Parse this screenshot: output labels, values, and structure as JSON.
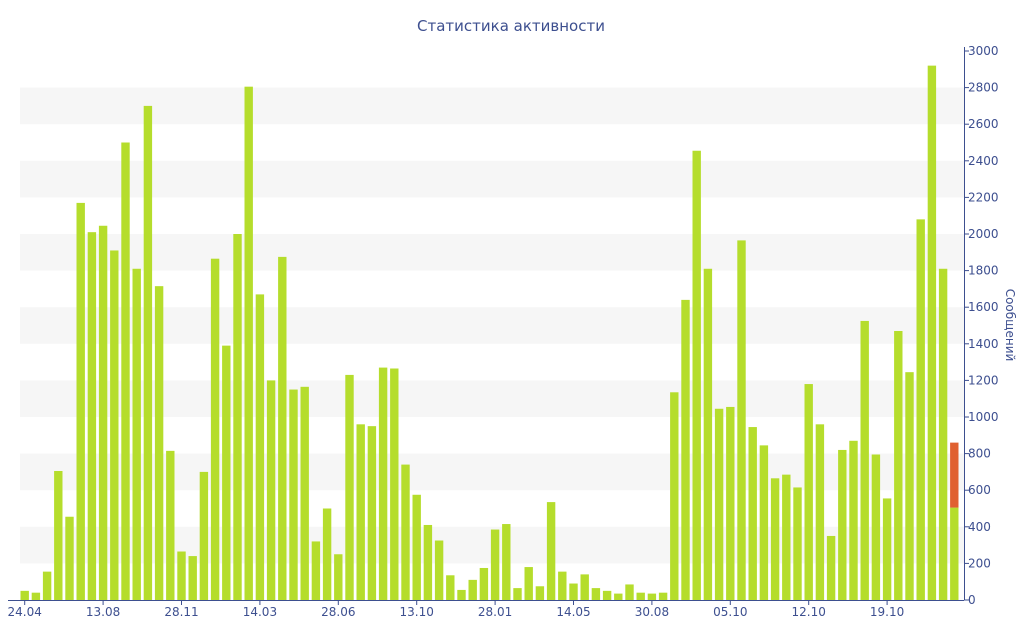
{
  "colors": {
    "bar": "#b5dd2c",
    "highlight_bar": "#e06030",
    "band": "#f6f6f6",
    "axis": "#3d4f8f",
    "text": "#3d4f8f"
  },
  "chart_data": {
    "type": "bar",
    "title": "Статистика активности",
    "xlabel": "",
    "ylabel": "Сообщений",
    "ylim": [
      0,
      3000
    ],
    "y_ticks": [
      0,
      200,
      400,
      600,
      800,
      1000,
      1200,
      1400,
      1600,
      1800,
      2000,
      2200,
      2400,
      2600,
      2800,
      3000
    ],
    "y_axis_side": "right",
    "grid": "alternating horizontal bands",
    "legend": "none",
    "x_tick_labels": [
      {
        "label": "24.04",
        "index": 0
      },
      {
        "label": "13.08",
        "index": 7
      },
      {
        "label": "28.11",
        "index": 14
      },
      {
        "label": "14.03",
        "index": 21
      },
      {
        "label": "28.06",
        "index": 28
      },
      {
        "label": "13.10",
        "index": 35
      },
      {
        "label": "28.01",
        "index": 42
      },
      {
        "label": "14.05",
        "index": 49
      },
      {
        "label": "30.08",
        "index": 56
      },
      {
        "label": "05.10",
        "index": 63
      },
      {
        "label": "12.10",
        "index": 70
      },
      {
        "label": "19.10",
        "index": 77
      }
    ],
    "values": [
      50,
      40,
      155,
      705,
      455,
      2170,
      2010,
      2045,
      1910,
      2500,
      1810,
      2700,
      1715,
      815,
      265,
      240,
      700,
      1865,
      1390,
      2000,
      2805,
      1670,
      1200,
      1875,
      1150,
      1165,
      320,
      500,
      250,
      1230,
      960,
      950,
      1270,
      1265,
      740,
      575,
      410,
      325,
      135,
      55,
      110,
      175,
      385,
      415,
      65,
      180,
      75,
      535,
      155,
      90,
      140,
      65,
      50,
      35,
      85,
      40,
      35,
      40,
      1135,
      1640,
      2455,
      1810,
      1045,
      1055,
      1965,
      945,
      845,
      665,
      685,
      615,
      1180,
      960,
      350,
      820,
      870,
      1525,
      795,
      555,
      1470,
      1245,
      2080,
      2920,
      1810,
      505
    ],
    "last_bar_highlight": {
      "base_value": 505,
      "highlight_value": 355,
      "total": 860
    }
  }
}
